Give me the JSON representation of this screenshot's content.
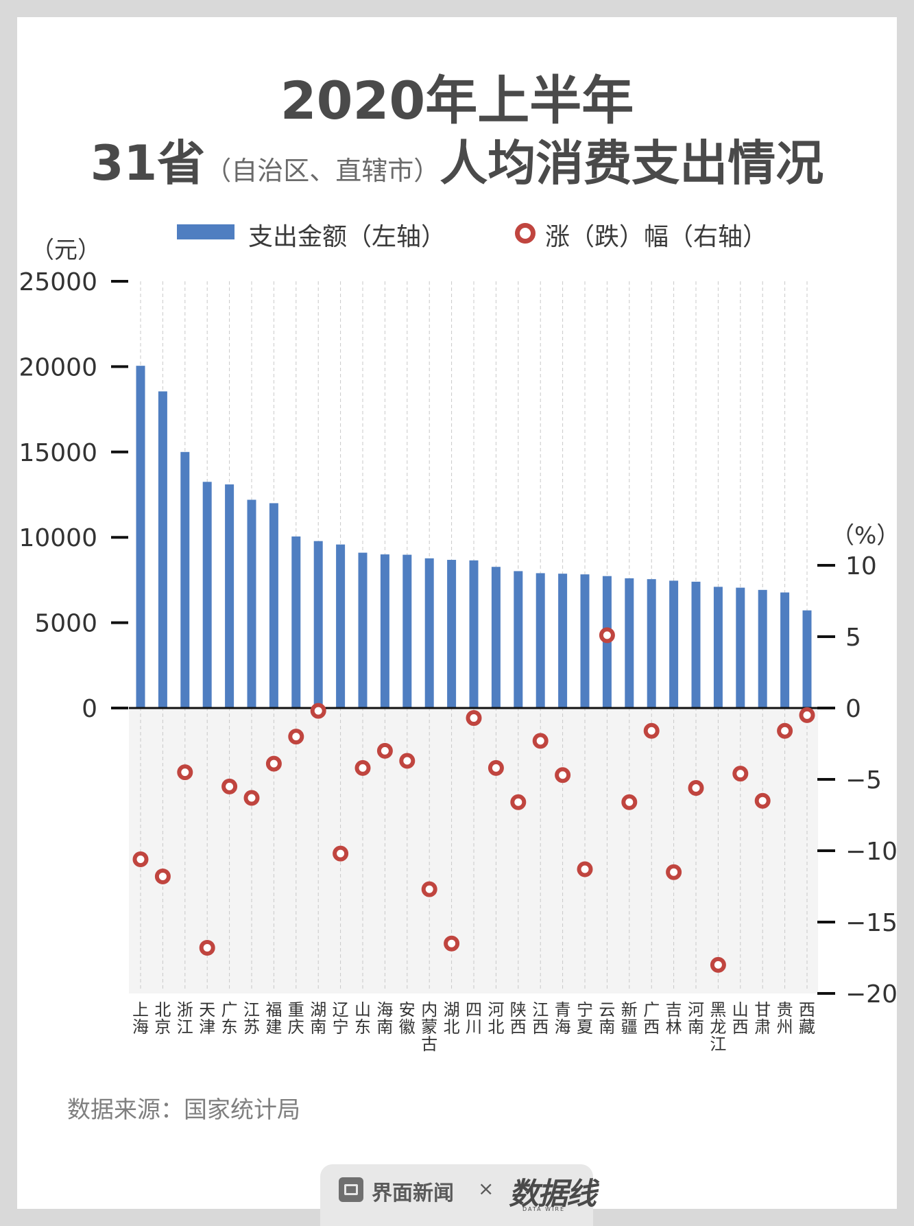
{
  "title": {
    "line1": "2020年上半年",
    "line2_main_a": "31省",
    "line2_paren": "（自治区、直辖市）",
    "line2_main_b": "人均消费支出情况"
  },
  "legend": {
    "bar_label": "支出金额（左轴）",
    "ring_label": "涨（跌）幅（右轴）"
  },
  "axis": {
    "left_unit": "（元）",
    "right_unit": "（%）",
    "left_ticks": [
      "25000",
      "20000",
      "15000",
      "10000",
      "5000",
      "0"
    ],
    "right_ticks": [
      "10",
      "5",
      "0",
      "−5",
      "−10",
      "−15",
      "−20"
    ]
  },
  "source": "数据来源：国家统计局",
  "footer": {
    "brand1": "界面新闻",
    "separator": "×",
    "brand2": "数据线",
    "brand2_sub": "DATA WIRE"
  },
  "colors": {
    "bar": "#4f7ec1",
    "ring": "#c0453f",
    "title": "#4a4a4a",
    "negative_area": "#f4f4f4"
  },
  "chart_data": {
    "type": "bar",
    "categories": [
      "上海",
      "北京",
      "浙江",
      "天津",
      "广东",
      "江苏",
      "福建",
      "重庆",
      "湖南",
      "辽宁",
      "山东",
      "海南",
      "安徽",
      "内蒙古",
      "湖北",
      "四川",
      "河北",
      "陕西",
      "江西",
      "青海",
      "宁夏",
      "云南",
      "新疆",
      "广西",
      "吉林",
      "河南",
      "黑龙江",
      "山西",
      "甘肃",
      "贵州",
      "西藏"
    ],
    "series": [
      {
        "name": "支出金额（左轴）",
        "axis": "left",
        "values": [
          20050,
          18550,
          15000,
          13250,
          13100,
          12200,
          12000,
          10050,
          9780,
          9580,
          9100,
          9000,
          8980,
          8770,
          8680,
          8650,
          8270,
          8020,
          7900,
          7870,
          7830,
          7730,
          7600,
          7550,
          7460,
          7400,
          7100,
          7050,
          6920,
          6770,
          5720
        ]
      },
      {
        "name": "涨（跌）幅（右轴）",
        "axis": "right",
        "type": "scatter",
        "values": [
          -10.6,
          -11.8,
          -4.5,
          -16.8,
          -5.5,
          -6.3,
          -3.9,
          -2.0,
          -0.2,
          -10.2,
          -4.2,
          -3.0,
          -3.7,
          -12.7,
          -16.5,
          -0.7,
          -4.2,
          -6.6,
          -2.3,
          -4.7,
          -11.3,
          5.1,
          -6.6,
          -1.6,
          -11.5,
          -5.6,
          -18.0,
          -4.6,
          -6.5,
          -1.6,
          -0.5
        ]
      }
    ],
    "ylim_left": [
      0,
      25000
    ],
    "ylim_right": [
      -20,
      10
    ],
    "grid": "vertical dashed"
  }
}
